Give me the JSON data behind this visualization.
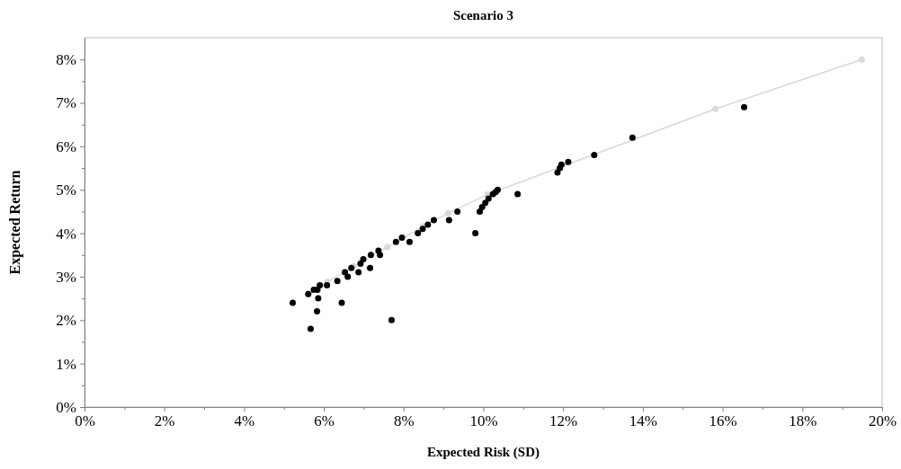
{
  "chart_data": {
    "type": "scatter",
    "title": "Scenario 3",
    "xlabel": "Expected Risk (SD)",
    "ylabel": "Expected Return",
    "xlim": [
      0,
      20
    ],
    "ylim": [
      0,
      8.5
    ],
    "xticks": [
      {
        "value": 0,
        "label": "0%"
      },
      {
        "value": 1,
        "label": null
      },
      {
        "value": 2,
        "label": "2%"
      },
      {
        "value": 3,
        "label": null
      },
      {
        "value": 4,
        "label": "4%"
      },
      {
        "value": 5,
        "label": null
      },
      {
        "value": 6,
        "label": "6%"
      },
      {
        "value": 7,
        "label": null
      },
      {
        "value": 8,
        "label": "8%"
      },
      {
        "value": 9,
        "label": null
      },
      {
        "value": 10,
        "label": "10%"
      },
      {
        "value": 11,
        "label": null
      },
      {
        "value": 12,
        "label": "12%"
      },
      {
        "value": 13,
        "label": null
      },
      {
        "value": 14,
        "label": "14%"
      },
      {
        "value": 15,
        "label": null
      },
      {
        "value": 16,
        "label": "16%"
      },
      {
        "value": 17,
        "label": null
      },
      {
        "value": 18,
        "label": "18%"
      },
      {
        "value": 19,
        "label": null
      },
      {
        "value": 20,
        "label": "20%"
      }
    ],
    "yticks": [
      {
        "value": 0,
        "label": "0%"
      },
      {
        "value": 0.5,
        "label": null
      },
      {
        "value": 1,
        "label": "1%"
      },
      {
        "value": 1.5,
        "label": null
      },
      {
        "value": 2,
        "label": "2%"
      },
      {
        "value": 2.5,
        "label": null
      },
      {
        "value": 3,
        "label": "3%"
      },
      {
        "value": 3.5,
        "label": null
      },
      {
        "value": 4,
        "label": "4%"
      },
      {
        "value": 4.5,
        "label": null
      },
      {
        "value": 5,
        "label": "5%"
      },
      {
        "value": 5.5,
        "label": null
      },
      {
        "value": 6,
        "label": "6%"
      },
      {
        "value": 6.5,
        "label": null
      },
      {
        "value": 7,
        "label": "7%"
      },
      {
        "value": 7.5,
        "label": null
      },
      {
        "value": 8,
        "label": "8%"
      }
    ],
    "grid": false,
    "marker": "circle",
    "series": [
      {
        "type": "line",
        "color": "#d9d9d9",
        "x": [
          5.61,
          6.09,
          6.75,
          7.59,
          8.49,
          9.12,
          10.1,
          15.82,
          19.49
        ],
        "values": [
          2.6,
          2.88,
          3.24,
          3.68,
          4.16,
          4.46,
          4.89,
          6.86,
          8.0
        ]
      },
      {
        "color": "#000000",
        "x": [
          5.22,
          5.61,
          5.75,
          5.84,
          5.9,
          5.86,
          5.83,
          5.67,
          6.08,
          6.34,
          6.45,
          6.53,
          6.6,
          6.69,
          6.87,
          6.92,
          6.99,
          7.16,
          7.18,
          7.41,
          7.37,
          7.81,
          7.96,
          8.15,
          8.36,
          8.48,
          8.61,
          8.76,
          9.14,
          9.35,
          9.8,
          9.91,
          9.97,
          10.05,
          10.13,
          10.24,
          10.31,
          10.36,
          10.86,
          11.86,
          11.92,
          11.96,
          12.13,
          12.78,
          13.74,
          16.54,
          7.7
        ],
        "values": [
          2.4,
          2.6,
          2.7,
          2.7,
          2.8,
          2.5,
          2.2,
          1.8,
          2.8,
          2.9,
          2.4,
          3.1,
          3.0,
          3.2,
          3.1,
          3.3,
          3.4,
          3.2,
          3.5,
          3.5,
          3.6,
          3.8,
          3.9,
          3.8,
          4.0,
          4.1,
          4.2,
          4.3,
          4.3,
          4.5,
          4.0,
          4.5,
          4.6,
          4.7,
          4.8,
          4.9,
          4.95,
          5.0,
          4.9,
          5.4,
          5.5,
          5.58,
          5.64,
          5.8,
          6.2,
          6.9,
          2.0
        ]
      }
    ]
  }
}
